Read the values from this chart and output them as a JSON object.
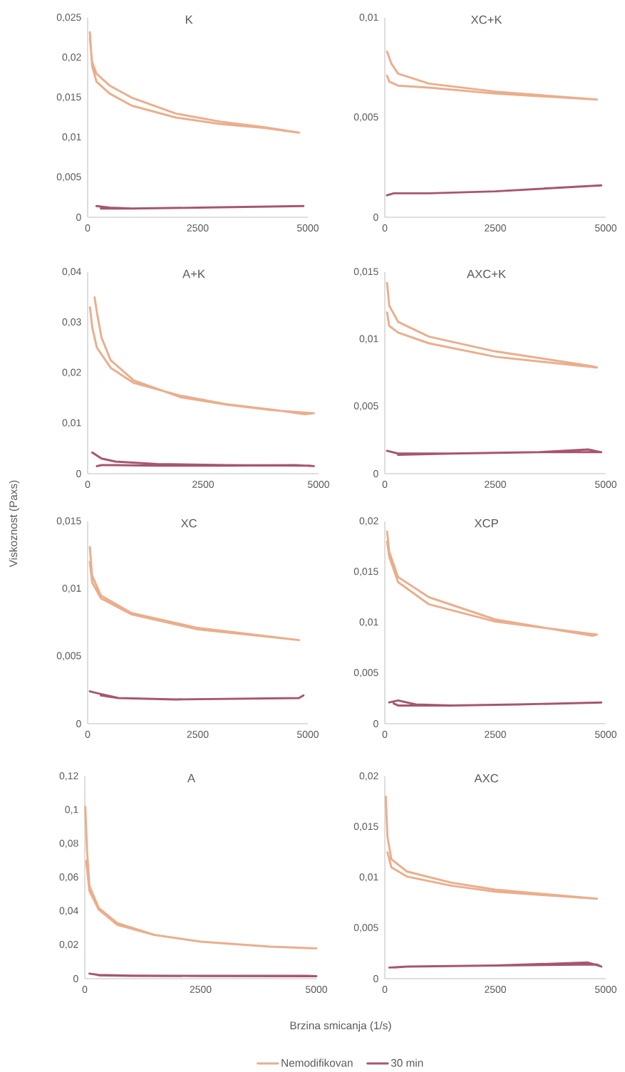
{
  "chart_data": [
    {
      "type": "line",
      "title": "K",
      "xlim": [
        0,
        5000
      ],
      "xticks": [
        0,
        2500,
        5000
      ],
      "ylim": [
        0,
        0.025
      ],
      "yticks": [
        0,
        {
          "value": 0.005,
          "label": "0,005"
        },
        {
          "value": 0.01,
          "label": "0,01"
        },
        {
          "value": 0.015,
          "label": "0,015"
        },
        {
          "value": 0.02,
          "label": "0,02"
        },
        {
          "value": 0.025,
          "label": "0,025"
        }
      ],
      "series": [
        {
          "color": "#eaae8c",
          "x": [
            50,
            100,
            200,
            500,
            1000,
            2000,
            3000,
            4000,
            4800,
            4000,
            3000,
            2000,
            1000,
            500,
            200,
            100,
            50
          ],
          "values": [
            0.0225,
            0.0195,
            0.018,
            0.0165,
            0.015,
            0.013,
            0.012,
            0.0113,
            0.0106,
            0.0112,
            0.0117,
            0.0125,
            0.014,
            0.0155,
            0.017,
            0.019,
            0.0232
          ]
        },
        {
          "color": "#a6566f",
          "x": [
            200,
            500,
            1000,
            2500,
            4900,
            2500,
            1000,
            300
          ],
          "values": [
            0.0014,
            0.0012,
            0.0011,
            0.0012,
            0.0014,
            0.0012,
            0.0011,
            0.0011
          ]
        }
      ]
    },
    {
      "type": "line",
      "title": "XC+K",
      "xlim": [
        0,
        5000
      ],
      "xticks": [
        0,
        2500,
        5000
      ],
      "ylim": [
        0,
        0.01
      ],
      "yticks": [
        0,
        {
          "value": 0.005,
          "label": "0,005"
        },
        {
          "value": 0.01,
          "label": "0,01"
        }
      ],
      "series": [
        {
          "color": "#eaae8c",
          "x": [
            50,
            150,
            300,
            1000,
            2500,
            4800,
            2500,
            1000,
            300,
            100,
            50
          ],
          "values": [
            0.0083,
            0.0077,
            0.0072,
            0.0067,
            0.0063,
            0.0059,
            0.0062,
            0.0065,
            0.0066,
            0.0068,
            0.0071
          ]
        },
        {
          "color": "#a6566f",
          "x": [
            50,
            200,
            1000,
            2500,
            4900,
            2500,
            1000,
            300
          ],
          "values": [
            0.0011,
            0.0012,
            0.0012,
            0.0013,
            0.0016,
            0.0013,
            0.0012,
            0.0012
          ]
        }
      ]
    },
    {
      "type": "line",
      "title": "A+K",
      "xlim": [
        0,
        5000
      ],
      "xticks": [
        0,
        2500,
        5000
      ],
      "ylim": [
        0,
        0.04
      ],
      "yticks": [
        0,
        {
          "value": 0.01,
          "label": "0,01"
        },
        {
          "value": 0.02,
          "label": "0,02"
        },
        {
          "value": 0.03,
          "label": "0,03"
        },
        {
          "value": 0.04,
          "label": "0,04"
        }
      ],
      "series": [
        {
          "color": "#eaae8c",
          "x": [
            50,
            100,
            200,
            500,
            1000,
            2000,
            3000,
            4000,
            4700,
            4900,
            4000,
            3000,
            2000,
            1000,
            500,
            300,
            200,
            150
          ],
          "values": [
            0.033,
            0.029,
            0.025,
            0.021,
            0.018,
            0.0155,
            0.0138,
            0.0127,
            0.0118,
            0.012,
            0.0126,
            0.0137,
            0.0152,
            0.0185,
            0.0225,
            0.027,
            0.032,
            0.035
          ]
        },
        {
          "color": "#a6566f",
          "x": [
            100,
            300,
            600,
            1500,
            3000,
            4800,
            4900,
            4500,
            3000,
            1500,
            600,
            300,
            200
          ],
          "values": [
            0.0042,
            0.003,
            0.0024,
            0.0019,
            0.0017,
            0.0016,
            0.0015,
            0.0017,
            0.0016,
            0.0016,
            0.0017,
            0.0017,
            0.0015
          ]
        }
      ]
    },
    {
      "type": "line",
      "title": "AXC+K",
      "xlim": [
        0,
        5000
      ],
      "xticks": [
        0,
        2500,
        5000
      ],
      "ylim": [
        0,
        0.015
      ],
      "yticks": [
        0,
        {
          "value": 0.005,
          "label": "0,005"
        },
        {
          "value": 0.01,
          "label": "0,01"
        },
        {
          "value": 0.015,
          "label": "0,015"
        }
      ],
      "series": [
        {
          "color": "#eaae8c",
          "x": [
            50,
            100,
            300,
            1000,
            2500,
            4700,
            4800,
            2500,
            1000,
            300,
            100,
            50
          ],
          "values": [
            0.0142,
            0.0125,
            0.0113,
            0.0102,
            0.0091,
            0.008,
            0.0079,
            0.0087,
            0.0097,
            0.0105,
            0.011,
            0.012
          ]
        },
        {
          "color": "#a6566f",
          "x": [
            50,
            300,
            1500,
            3500,
            4600,
            4900,
            3500,
            1500,
            300
          ],
          "values": [
            0.0017,
            0.0015,
            0.0015,
            0.0016,
            0.0018,
            0.0016,
            0.0016,
            0.0015,
            0.0014
          ]
        }
      ]
    },
    {
      "type": "line",
      "title": "XC",
      "ylabel": "Viskoznost (Paxs)",
      "xlim": [
        0,
        5000
      ],
      "xticks": [
        0,
        2500,
        5000
      ],
      "ylim": [
        0,
        0.015
      ],
      "yticks": [
        0,
        {
          "value": 0.005,
          "label": "0,005"
        },
        {
          "value": 0.01,
          "label": "0,01"
        },
        {
          "value": 0.015,
          "label": "0,015"
        }
      ],
      "series": [
        {
          "color": "#eaae8c",
          "x": [
            50,
            100,
            300,
            1000,
            2500,
            4800,
            2500,
            1000,
            300,
            100,
            50
          ],
          "values": [
            0.0131,
            0.011,
            0.0095,
            0.0082,
            0.0071,
            0.0062,
            0.007,
            0.0081,
            0.0093,
            0.0105,
            0.012
          ]
        },
        {
          "color": "#a6566f",
          "x": [
            50,
            300,
            700,
            2000,
            4800,
            4900,
            4800,
            2000,
            700,
            300
          ],
          "values": [
            0.0024,
            0.0022,
            0.0019,
            0.0018,
            0.0019,
            0.0021,
            0.0019,
            0.0018,
            0.0019,
            0.0021
          ]
        }
      ]
    },
    {
      "type": "line",
      "title": "XCP",
      "xlim": [
        0,
        5000
      ],
      "xticks": [
        0,
        2500,
        5000
      ],
      "ylim": [
        0,
        0.02
      ],
      "yticks": [
        0,
        {
          "value": 0.005,
          "label": "0,005"
        },
        {
          "value": 0.01,
          "label": "0,01"
        },
        {
          "value": 0.015,
          "label": "0,015"
        },
        {
          "value": 0.02,
          "label": "0,02"
        }
      ],
      "series": [
        {
          "color": "#eaae8c",
          "x": [
            50,
            100,
            300,
            1000,
            2500,
            4700,
            4800,
            2500,
            1000,
            300,
            100,
            50
          ],
          "values": [
            0.019,
            0.017,
            0.0145,
            0.0125,
            0.0103,
            0.0087,
            0.0088,
            0.0101,
            0.0118,
            0.014,
            0.0165,
            0.018
          ]
        },
        {
          "color": "#a6566f",
          "x": [
            100,
            300,
            700,
            1500,
            3000,
            4900,
            3000,
            1500,
            700,
            300,
            200
          ],
          "values": [
            0.0021,
            0.0023,
            0.0019,
            0.0018,
            0.0019,
            0.0021,
            0.0019,
            0.0018,
            0.0018,
            0.0018,
            0.002
          ]
        }
      ]
    },
    {
      "type": "line",
      "title": "A",
      "xlabel": "Brzina smicanja (1/s)",
      "legend": "bottom",
      "xlim": [
        0,
        5000
      ],
      "xticks": [
        0,
        2500,
        5000
      ],
      "ylim": [
        0,
        0.12
      ],
      "yticks": [
        0,
        {
          "value": 0.02,
          "label": "0,02"
        },
        {
          "value": 0.04,
          "label": "0,04"
        },
        {
          "value": 0.06,
          "label": "0,06"
        },
        {
          "value": 0.08,
          "label": "0,08"
        },
        {
          "value": 0.1,
          "label": "0,1"
        },
        {
          "value": 0.12,
          "label": "0,12"
        }
      ],
      "series": [
        {
          "name": "Nemodifikovan",
          "color": "#eaae8c",
          "x": [
            10,
            50,
            100,
            300,
            700,
            1500,
            2500,
            4000,
            4900,
            5000,
            4000,
            2500,
            1500,
            700,
            300,
            100,
            30
          ],
          "values": [
            0.102,
            0.075,
            0.055,
            0.042,
            0.033,
            0.026,
            0.022,
            0.019,
            0.018,
            0.018,
            0.019,
            0.022,
            0.026,
            0.032,
            0.041,
            0.052,
            0.07
          ]
        },
        {
          "name": "30 min",
          "color": "#a6566f",
          "x": [
            100,
            300,
            1000,
            2500,
            4800,
            5000,
            2500,
            1000,
            300
          ],
          "values": [
            0.003,
            0.0022,
            0.0018,
            0.0017,
            0.0017,
            0.0015,
            0.0016,
            0.0017,
            0.002
          ]
        }
      ]
    },
    {
      "type": "line",
      "title": "AXC",
      "xlim": [
        0,
        5000
      ],
      "xticks": [
        0,
        2500,
        5000
      ],
      "ylim": [
        0,
        0.02
      ],
      "yticks": [
        0,
        {
          "value": 0.005,
          "label": "0,005"
        },
        {
          "value": 0.01,
          "label": "0,01"
        },
        {
          "value": 0.015,
          "label": "0,015"
        },
        {
          "value": 0.02,
          "label": "0,02"
        }
      ],
      "series": [
        {
          "color": "#eaae8c",
          "x": [
            20,
            60,
            150,
            500,
            1500,
            2500,
            4800,
            2500,
            1500,
            500,
            150,
            60
          ],
          "values": [
            0.018,
            0.014,
            0.0118,
            0.0106,
            0.0095,
            0.0088,
            0.0079,
            0.0086,
            0.0092,
            0.0101,
            0.011,
            0.0125
          ]
        },
        {
          "color": "#a6566f",
          "x": [
            100,
            500,
            2500,
            4600,
            4900,
            4800,
            2500,
            500,
            200
          ],
          "values": [
            0.0011,
            0.0012,
            0.0013,
            0.0016,
            0.0012,
            0.0014,
            0.0013,
            0.0012,
            0.0011
          ]
        }
      ]
    }
  ]
}
